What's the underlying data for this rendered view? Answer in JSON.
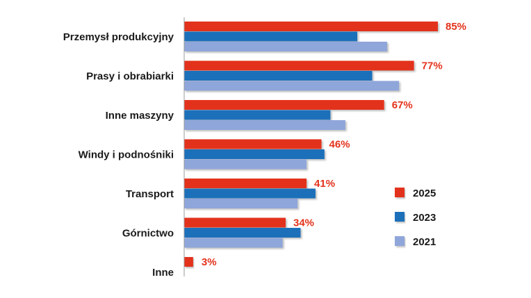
{
  "chart_data": {
    "type": "bar",
    "orientation": "horizontal",
    "categories": [
      "Przemysł produkcyjny",
      "Prasy i obrabiarki",
      "Inne maszyny",
      "Windy i podnośniki",
      "Transport",
      "Górnictwo",
      "Inne"
    ],
    "series": [
      {
        "name": "2025",
        "color": "#e3321b",
        "values": [
          85,
          77,
          67,
          46,
          41,
          34,
          3
        ]
      },
      {
        "name": "2023",
        "color": "#1e6fba",
        "values": [
          58,
          63,
          49,
          47,
          44,
          39,
          null
        ]
      },
      {
        "name": "2021",
        "color": "#8fa6da",
        "values": [
          68,
          72,
          54,
          41,
          38,
          33,
          null
        ]
      }
    ],
    "data_labels": [
      "85%",
      "77%",
      "67%",
      "46%",
      "41%",
      "34%",
      "3%"
    ],
    "data_label_series": "2025",
    "xlim": [
      0,
      100
    ],
    "axis_visible": false,
    "grid": false,
    "legend_position": "right"
  }
}
